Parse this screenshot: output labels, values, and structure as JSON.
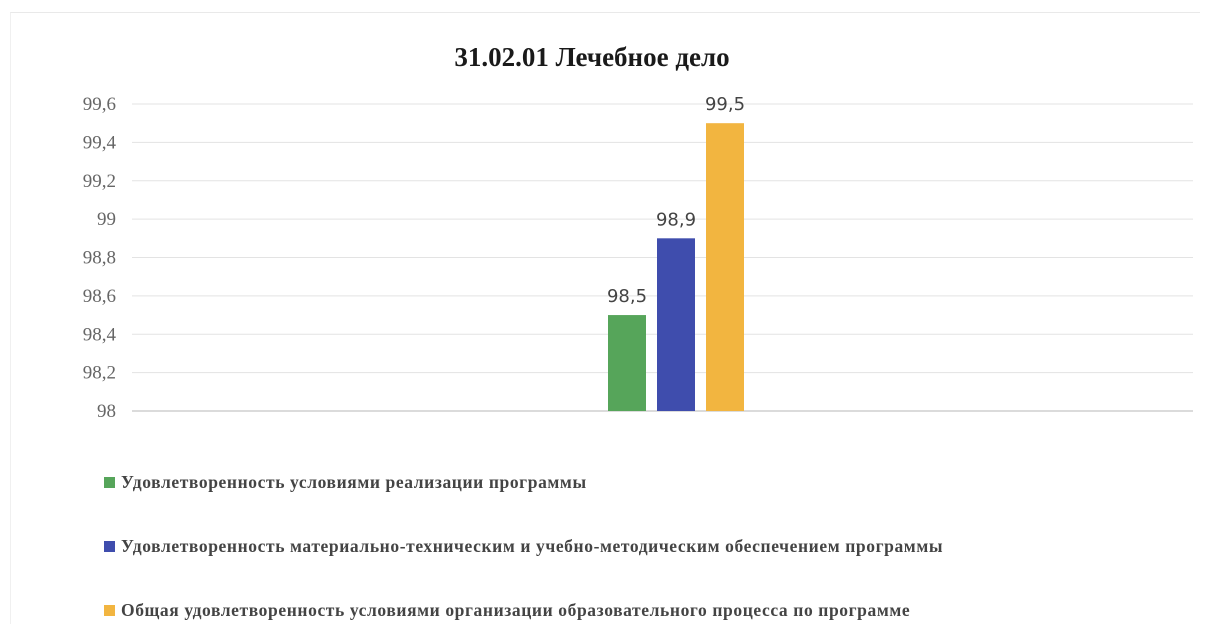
{
  "chart_data": {
    "type": "bar",
    "title": "31.02.01 Лечебное дело",
    "xlabel": "",
    "ylabel": "",
    "ylim": [
      98,
      99.6
    ],
    "y_ticks": [
      "98",
      "98,2",
      "98,4",
      "98,6",
      "98,8",
      "99",
      "99,2",
      "99,4",
      "99,6"
    ],
    "y_tick_values": [
      98,
      98.2,
      98.4,
      98.6,
      98.8,
      99,
      99.2,
      99.4,
      99.6
    ],
    "grid": true,
    "legend_position": "bottom",
    "series": [
      {
        "name": "Удовлетворенность условиями реализации программы",
        "value": 98.5,
        "label": "98,5",
        "color": "#56a55a"
      },
      {
        "name": "Удовлетворенность материально-техническим и учебно-методическим обеспечением программы",
        "value": 98.9,
        "label": "98,9",
        "color": "#3f4dad"
      },
      {
        "name": "Общая удовлетворенность условиями организации образовательного процесса по программе",
        "value": 99.5,
        "label": "99,5",
        "color": "#f2b540"
      }
    ]
  }
}
